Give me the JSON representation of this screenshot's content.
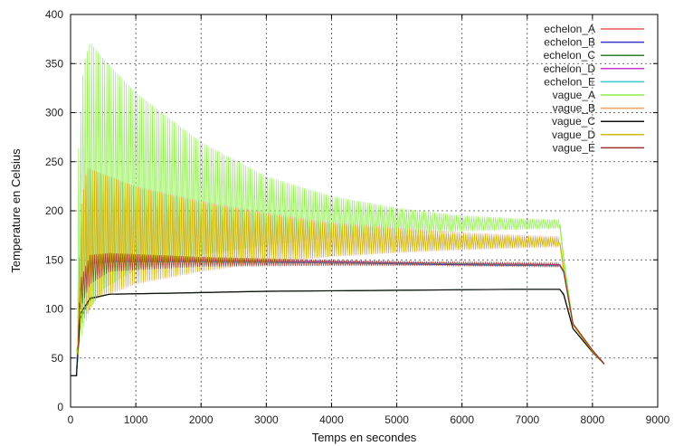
{
  "chart_data": {
    "type": "line",
    "xlabel": "Temps en secondes",
    "ylabel": "Temperature en Celsius",
    "xlim": [
      0,
      9000
    ],
    "ylim": [
      0,
      400
    ],
    "xticks": [
      0,
      1000,
      2000,
      3000,
      4000,
      5000,
      6000,
      7000,
      8000,
      9000
    ],
    "yticks": [
      0,
      50,
      100,
      150,
      200,
      250,
      300,
      350,
      400
    ],
    "grid": true,
    "legend_position": "top-right",
    "series": [
      {
        "name": "echelon_A",
        "color": "#e8584a",
        "band": false,
        "points": [
          [
            0,
            32
          ],
          [
            90,
            32
          ],
          [
            150,
            120
          ],
          [
            300,
            147
          ],
          [
            600,
            149
          ],
          [
            2000,
            149
          ],
          [
            4000,
            148
          ],
          [
            6000,
            146
          ],
          [
            7500,
            145
          ],
          [
            7560,
            138
          ],
          [
            7700,
            85
          ],
          [
            8000,
            58
          ],
          [
            8180,
            44
          ]
        ]
      },
      {
        "name": "echelon_B",
        "color": "#3535c8",
        "band": false,
        "points": [
          [
            0,
            32
          ],
          [
            90,
            32
          ],
          [
            150,
            118
          ],
          [
            300,
            146
          ],
          [
            600,
            148
          ],
          [
            2000,
            148
          ],
          [
            4000,
            147
          ],
          [
            6000,
            145
          ],
          [
            7500,
            144
          ],
          [
            7560,
            137
          ],
          [
            7700,
            84
          ],
          [
            8000,
            57
          ],
          [
            8180,
            44
          ]
        ]
      },
      {
        "name": "echelon_C",
        "color": "#2f7f2f",
        "band": false,
        "points": [
          [
            0,
            32
          ],
          [
            90,
            32
          ],
          [
            150,
            90
          ],
          [
            300,
            110
          ],
          [
            600,
            115
          ],
          [
            1500,
            116
          ],
          [
            3000,
            118
          ],
          [
            5000,
            119
          ],
          [
            6800,
            120
          ],
          [
            7500,
            120
          ],
          [
            7560,
            115
          ],
          [
            7700,
            80
          ],
          [
            8000,
            56
          ],
          [
            8180,
            44
          ]
        ]
      },
      {
        "name": "echelon_D",
        "color": "#cc33cc",
        "band": false,
        "points": [
          [
            0,
            32
          ],
          [
            90,
            32
          ],
          [
            150,
            119
          ],
          [
            300,
            147
          ],
          [
            600,
            149
          ],
          [
            2000,
            149
          ],
          [
            4000,
            148
          ],
          [
            6000,
            146
          ],
          [
            7500,
            145
          ],
          [
            7560,
            138
          ],
          [
            7700,
            85
          ],
          [
            8000,
            58
          ],
          [
            8180,
            44
          ]
        ]
      },
      {
        "name": "echelon_E",
        "color": "#33cccc",
        "band": false,
        "points": [
          [
            0,
            32
          ],
          [
            90,
            32
          ],
          [
            150,
            118
          ],
          [
            300,
            146
          ],
          [
            600,
            148
          ],
          [
            2000,
            148
          ],
          [
            4000,
            147
          ],
          [
            6000,
            146
          ],
          [
            7500,
            144
          ],
          [
            7560,
            137
          ],
          [
            7700,
            84
          ],
          [
            8000,
            57
          ],
          [
            8180,
            44
          ]
        ]
      },
      {
        "name": "vague_A",
        "color": "#88ee44",
        "band": true,
        "upper": [
          [
            90,
            60
          ],
          [
            120,
            260
          ],
          [
            200,
            350
          ],
          [
            300,
            372
          ],
          [
            500,
            355
          ],
          [
            1000,
            320
          ],
          [
            2000,
            270
          ],
          [
            3000,
            235
          ],
          [
            4000,
            215
          ],
          [
            5000,
            203
          ],
          [
            6000,
            195
          ],
          [
            7000,
            192
          ],
          [
            7500,
            191
          ]
        ],
        "lower": [
          [
            90,
            35
          ],
          [
            120,
            60
          ],
          [
            200,
            80
          ],
          [
            300,
            100
          ],
          [
            500,
            120
          ],
          [
            1000,
            140
          ],
          [
            2000,
            155
          ],
          [
            3000,
            165
          ],
          [
            4000,
            172
          ],
          [
            5000,
            176
          ],
          [
            6000,
            179
          ],
          [
            7000,
            181
          ],
          [
            7500,
            182
          ]
        ],
        "tail": [
          [
            7500,
            186
          ],
          [
            7560,
            150
          ],
          [
            7700,
            85
          ],
          [
            8000,
            58
          ],
          [
            8180,
            44
          ]
        ]
      },
      {
        "name": "vague_B",
        "color": "#f0a060",
        "band": true,
        "upper": [
          [
            100,
            60
          ],
          [
            150,
            200
          ],
          [
            250,
            245
          ],
          [
            400,
            240
          ],
          [
            1000,
            225
          ],
          [
            2000,
            210
          ],
          [
            3000,
            198
          ],
          [
            4000,
            188
          ],
          [
            5000,
            183
          ],
          [
            6000,
            178
          ],
          [
            7000,
            175
          ],
          [
            7500,
            174
          ]
        ],
        "lower": [
          [
            100,
            40
          ],
          [
            150,
            80
          ],
          [
            250,
            95
          ],
          [
            400,
            110
          ],
          [
            1000,
            125
          ],
          [
            2000,
            138
          ],
          [
            3000,
            147
          ],
          [
            4000,
            153
          ],
          [
            5000,
            157
          ],
          [
            6000,
            160
          ],
          [
            7000,
            162
          ],
          [
            7500,
            163
          ]
        ],
        "tail": [
          [
            7500,
            168
          ],
          [
            7560,
            140
          ],
          [
            7700,
            84
          ],
          [
            8000,
            57
          ],
          [
            8180,
            44
          ]
        ]
      },
      {
        "name": "vague_C",
        "color": "#111111",
        "band": false,
        "points": [
          [
            0,
            32
          ],
          [
            90,
            32
          ],
          [
            150,
            95
          ],
          [
            300,
            111
          ],
          [
            600,
            115
          ],
          [
            1500,
            116
          ],
          [
            3000,
            118
          ],
          [
            5000,
            119
          ],
          [
            6800,
            120
          ],
          [
            7500,
            120
          ],
          [
            7560,
            114
          ],
          [
            7700,
            80
          ],
          [
            8000,
            56
          ],
          [
            8180,
            44
          ]
        ]
      },
      {
        "name": "vague_D",
        "color": "#c8b800",
        "band": true,
        "upper": [
          [
            100,
            60
          ],
          [
            150,
            200
          ],
          [
            250,
            243
          ],
          [
            400,
            240
          ],
          [
            1000,
            224
          ],
          [
            2000,
            208
          ],
          [
            3000,
            196
          ],
          [
            4000,
            186
          ],
          [
            5000,
            181
          ],
          [
            6000,
            176
          ],
          [
            7000,
            173
          ],
          [
            7500,
            172
          ]
        ],
        "lower": [
          [
            100,
            40
          ],
          [
            150,
            80
          ],
          [
            250,
            97
          ],
          [
            400,
            112
          ],
          [
            1000,
            127
          ],
          [
            2000,
            139
          ],
          [
            3000,
            148
          ],
          [
            4000,
            154
          ],
          [
            5000,
            158
          ],
          [
            6000,
            161
          ],
          [
            7000,
            163
          ],
          [
            7500,
            164
          ]
        ],
        "tail": [
          [
            7500,
            167
          ],
          [
            7560,
            139
          ],
          [
            7700,
            84
          ],
          [
            8000,
            57
          ],
          [
            8180,
            44
          ]
        ]
      },
      {
        "name": "vague_E",
        "color": "#a0302a",
        "band": true,
        "upper": [
          [
            100,
            60
          ],
          [
            150,
            130
          ],
          [
            300,
            155
          ],
          [
            600,
            157
          ],
          [
            2000,
            153
          ],
          [
            4000,
            150
          ],
          [
            6000,
            148
          ],
          [
            7500,
            147
          ]
        ],
        "lower": [
          [
            100,
            40
          ],
          [
            150,
            100
          ],
          [
            300,
            125
          ],
          [
            600,
            138
          ],
          [
            2000,
            143
          ],
          [
            4000,
            144
          ],
          [
            6000,
            144
          ],
          [
            7500,
            143
          ]
        ],
        "tail": [
          [
            7500,
            145
          ],
          [
            7560,
            138
          ],
          [
            7700,
            85
          ],
          [
            8000,
            58
          ],
          [
            8180,
            44
          ]
        ]
      }
    ]
  }
}
